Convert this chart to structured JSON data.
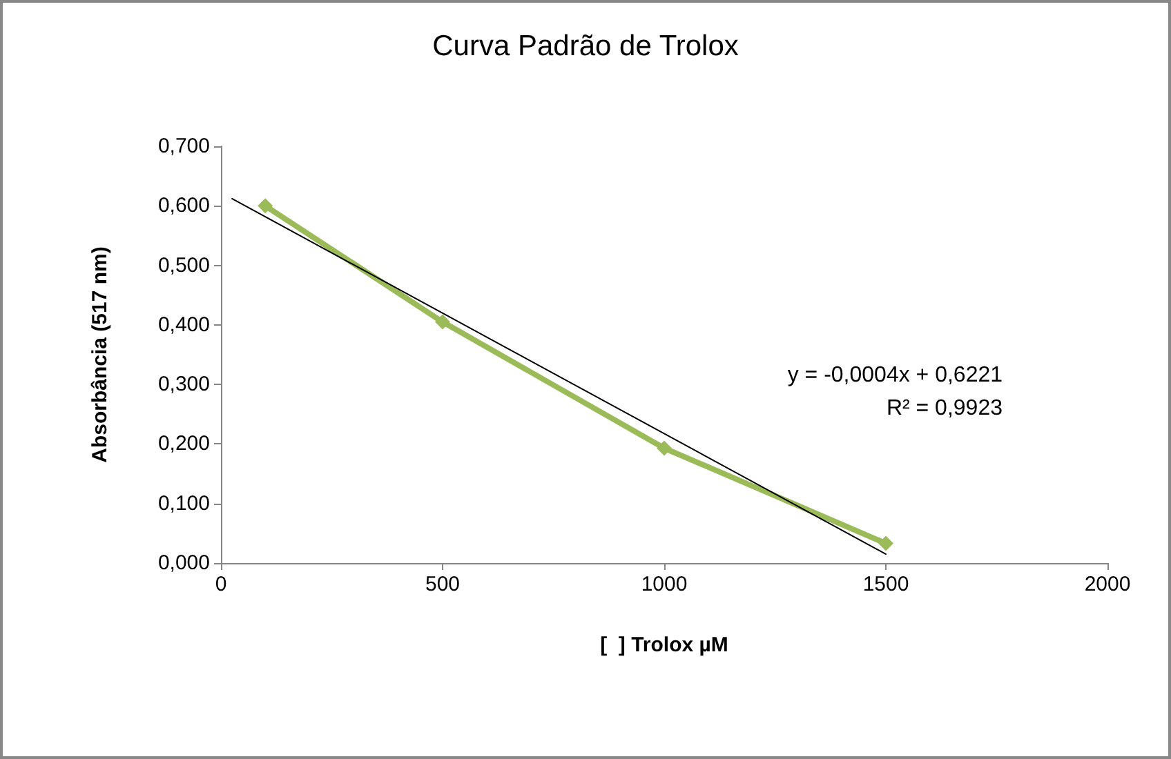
{
  "chart_data": {
    "type": "line",
    "title": "Curva Padrão de Trolox",
    "xlabel": "[  ] Trolox µM",
    "ylabel": "Absorbância (517 nm)",
    "xlim": [
      0,
      2000
    ],
    "xticks": [
      0,
      500,
      1000,
      1500,
      2000
    ],
    "ylim": [
      0,
      0.7
    ],
    "yticks": [
      {
        "value": 0,
        "label": "0,000"
      },
      {
        "value": 0.1,
        "label": "0,100"
      },
      {
        "value": 0.2,
        "label": "0,200"
      },
      {
        "value": 0.3,
        "label": "0,300"
      },
      {
        "value": 0.4,
        "label": "0,400"
      },
      {
        "value": 0.5,
        "label": "0,500"
      },
      {
        "value": 0.6,
        "label": "0,600"
      },
      {
        "value": 0.7,
        "label": "0,700"
      }
    ],
    "series": [
      {
        "color": "#9bbb59",
        "x": [
          100,
          500,
          1000,
          1500
        ],
        "values": [
          0.6,
          0.405,
          0.193,
          0.033
        ]
      },
      {
        "color": "#000000",
        "x": [
          25,
          1500
        ],
        "values": [
          0.612,
          0.015
        ],
        "marker": "none"
      }
    ],
    "annotations": [
      "y = -0,0004x + 0,6221",
      "R² = 0,9923"
    ],
    "marker": "diamond"
  }
}
